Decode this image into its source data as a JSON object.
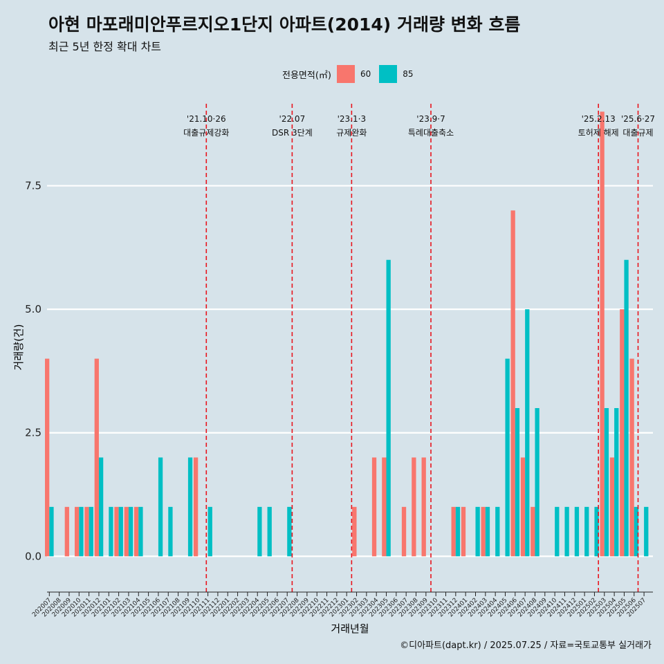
{
  "title": "아현 마포래미안푸르지오1단지 아파트(2014) 거래량 변화 흐름",
  "subtitle": "최근 5년 한정 확대 차트",
  "caption": "©디아파트(dapt.kr) / 2025.07.25 / 자료=국토교통부 실거래가",
  "legend": {
    "title": "전용면적(㎡)",
    "items": [
      {
        "label": "60",
        "color": "#F8766D"
      },
      {
        "label": "85",
        "color": "#00BFC4"
      }
    ]
  },
  "chart_data": {
    "type": "bar",
    "xlabel": "거래년월",
    "ylabel": "거래량(건)",
    "ylim": [
      -0.5,
      9.3
    ],
    "yticks": [
      0.0,
      2.5,
      5.0,
      7.5
    ],
    "ytick_labels": [
      "0.0",
      "2.5",
      "5.0",
      "7.5"
    ],
    "categories": [
      "202007",
      "202008",
      "202009",
      "202010",
      "202011",
      "202012",
      "202101",
      "202102",
      "202103",
      "202104",
      "202105",
      "202106",
      "202107",
      "202108",
      "202109",
      "202110",
      "202111",
      "202112",
      "202201",
      "202202",
      "202203",
      "202204",
      "202205",
      "202206",
      "202207",
      "202208",
      "202209",
      "202210",
      "202211",
      "202212",
      "202301",
      "202302",
      "202303",
      "202304",
      "202305",
      "202306",
      "202307",
      "202308",
      "202309",
      "202310",
      "202311",
      "202312",
      "202401",
      "202402",
      "202403",
      "202404",
      "202405",
      "202406",
      "202407",
      "202408",
      "202409",
      "202410",
      "202411",
      "202412",
      "202501",
      "202502",
      "202503",
      "202504",
      "202505",
      "202506",
      "202507"
    ],
    "series": [
      {
        "name": "60",
        "color": "#F8766D",
        "values": [
          4,
          0,
          1,
          1,
          1,
          4,
          0,
          1,
          1,
          1,
          0,
          0,
          0,
          0,
          0,
          2,
          0,
          0,
          0,
          0,
          0,
          0,
          0,
          0,
          0,
          0,
          0,
          0,
          0,
          0,
          0,
          1,
          0,
          2,
          2,
          0,
          1,
          2,
          2,
          0,
          0,
          1,
          1,
          0,
          1,
          0,
          0,
          7,
          2,
          1,
          0,
          0,
          0,
          0,
          0,
          0,
          9,
          2,
          5,
          4,
          0
        ]
      },
      {
        "name": "85",
        "color": "#00BFC4",
        "values": [
          1,
          0,
          0,
          1,
          1,
          2,
          1,
          1,
          1,
          1,
          0,
          2,
          1,
          0,
          2,
          0,
          1,
          0,
          0,
          0,
          0,
          1,
          1,
          0,
          1,
          0,
          0,
          0,
          0,
          0,
          0,
          0,
          0,
          0,
          6,
          0,
          0,
          0,
          0,
          0,
          0,
          1,
          0,
          1,
          1,
          1,
          4,
          3,
          5,
          3,
          0,
          1,
          1,
          1,
          1,
          1,
          3,
          3,
          6,
          1,
          1
        ]
      }
    ],
    "events": [
      {
        "date": "'21.10·26",
        "label": "대출규제강화",
        "month_index": 15.84
      },
      {
        "date": "'22.07",
        "label": "DSR 3단계",
        "month_index": 24.5
      },
      {
        "date": "'23.1·3",
        "label": "규제완화",
        "month_index": 30.5
      },
      {
        "date": "'23.9·7",
        "label": "특례대출축소",
        "month_index": 38.5
      },
      {
        "date": "'25.2.13",
        "label": "토허제 해제",
        "month_index": 55.4
      },
      {
        "date": "'25.6·27",
        "label": "대출규제",
        "month_index": 59.4
      }
    ]
  }
}
